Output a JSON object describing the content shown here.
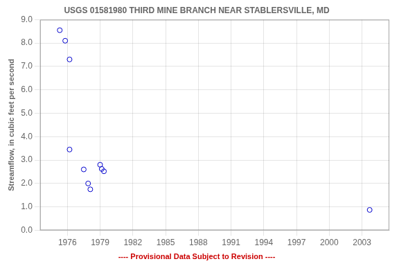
{
  "chart_data": {
    "type": "scatter",
    "title": "USGS 01581980 THIRD MINE BRANCH NEAR STABLERSVILLE, MD",
    "y_label": "Streamflow, in cubic feet per second",
    "annotations": [
      {
        "text": "---- Provisional Data Subject to Revision ----",
        "color": "#cc0000"
      }
    ],
    "x": [
      1975.3,
      1975.8,
      1976.2,
      1976.2,
      1977.5,
      1977.9,
      1978.1,
      1979.0,
      1979.15,
      1979.35,
      2003.7
    ],
    "values": [
      8.55,
      8.1,
      7.3,
      3.45,
      2.6,
      2.0,
      1.75,
      2.8,
      2.62,
      2.52,
      0.87
    ],
    "color": "#0000cc",
    "marker": "circle",
    "xlim": [
      1973.5,
      2005.5
    ],
    "ylim": [
      0,
      9
    ],
    "xticks": [
      1976,
      1979,
      1982,
      1985,
      1988,
      1991,
      1994,
      1997,
      2000,
      2003
    ],
    "yticks": [
      {
        "value": 0,
        "label": "0.0"
      },
      {
        "value": 1,
        "label": "1.0"
      },
      {
        "value": 2,
        "label": "2.0"
      },
      {
        "value": 3,
        "label": "3.0"
      },
      {
        "value": 4,
        "label": "4.0"
      },
      {
        "value": 5,
        "label": "5.0"
      },
      {
        "value": 6,
        "label": "6.0"
      },
      {
        "value": 7,
        "label": "7.0"
      },
      {
        "value": 8,
        "label": "8.0"
      },
      {
        "value": 9,
        "label": "9.0"
      }
    ],
    "grid": true
  }
}
